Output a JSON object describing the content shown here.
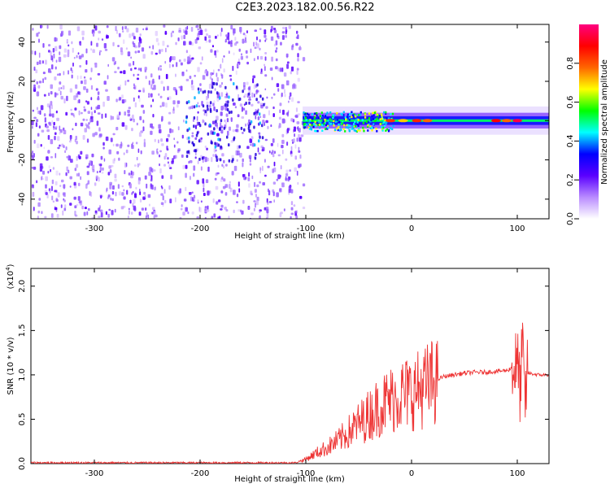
{
  "page_title": "C2E3.2023.182.00.56.R22",
  "chart_data": [
    {
      "type": "heatmap",
      "title": "C2E3.2023.182.00.56.R22",
      "xlabel": "Height of straight line (km)",
      "ylabel": "Frequency (Hz)",
      "xlim": [
        -360,
        130
      ],
      "ylim": [
        -50,
        49
      ],
      "x_ticks": [
        "-300",
        "-200",
        "-100",
        "0",
        "100"
      ],
      "x_tick_values": [
        -300,
        -200,
        -100,
        0,
        100
      ],
      "y_ticks": [
        "-40",
        "-20",
        "0",
        "20",
        "40"
      ],
      "y_tick_values": [
        -40,
        -20,
        0,
        20,
        40
      ],
      "noise_region_x": [
        -360,
        -103
      ],
      "signal_band": {
        "x_start": -103,
        "x_end": 130,
        "center_freq": 0,
        "half_width_hz": 4
      },
      "colorbar": {
        "label": "Normalized spectral amplitude",
        "range": [
          0,
          1
        ],
        "ticks": [
          "0.0",
          "0.2",
          "0.4",
          "0.6",
          "0.8"
        ],
        "tick_values": [
          0,
          0.2,
          0.4,
          0.6,
          0.8
        ],
        "colors": [
          "#ffffff",
          "#b98bff",
          "#5a00ff",
          "#0000ff",
          "#00ffff",
          "#00ff00",
          "#ffff00",
          "#ff6600",
          "#ff0000",
          "#ff0080"
        ]
      }
    },
    {
      "type": "line",
      "xlabel": "Height of straight line (km)",
      "ylabel": "SNR (10 * v/v)",
      "ylabel_multiplier_base": "(x10",
      "ylabel_multiplier_exp": "4",
      "ylabel_multiplier_close": ")",
      "xlim": [
        -360,
        130
      ],
      "ylim": [
        0,
        2.2
      ],
      "x_ticks": [
        "-300",
        "-200",
        "-100",
        "0",
        "100"
      ],
      "x_tick_values": [
        -300,
        -200,
        -100,
        0,
        100
      ],
      "y_ticks": [
        "0.0",
        "0.5",
        "1.0",
        "1.5",
        "2.0"
      ],
      "y_tick_values": [
        0,
        0.5,
        1.0,
        1.5,
        2.0
      ],
      "line_color": "#ee3333",
      "series": [
        {
          "name": "SNR",
          "x": [
            -360,
            -300,
            -200,
            -110,
            -100,
            -90,
            -80,
            -70,
            -60,
            -50,
            -40,
            -30,
            -20,
            -10,
            0,
            10,
            20,
            30,
            40,
            50,
            60,
            70,
            80,
            90,
            95,
            100,
            103,
            105,
            107,
            110,
            120,
            130
          ],
          "y": [
            0.01,
            0.01,
            0.01,
            0.01,
            0.05,
            0.12,
            0.18,
            0.25,
            0.35,
            0.45,
            0.55,
            0.65,
            0.72,
            0.78,
            0.8,
            0.85,
            0.92,
            0.98,
            1.0,
            1.02,
            1.03,
            1.03,
            1.04,
            1.05,
            1.08,
            1.1,
            0.85,
            1.3,
            0.7,
            1.02,
            1.0,
            1.0
          ]
        }
      ]
    }
  ]
}
